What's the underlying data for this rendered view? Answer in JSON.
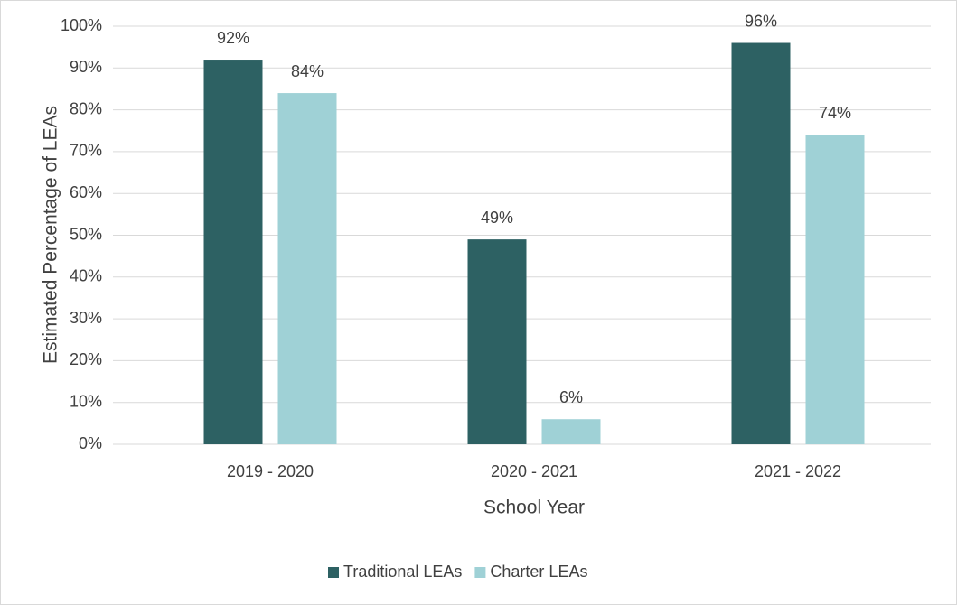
{
  "chart_data": {
    "type": "bar",
    "categories": [
      "2019 - 2020",
      "2020 - 2021",
      "2021 - 2022"
    ],
    "series": [
      {
        "name": "Traditional LEAs",
        "color": "#2d6163",
        "values": [
          92,
          49,
          96
        ],
        "value_labels": [
          "92%",
          "49%",
          "96%"
        ]
      },
      {
        "name": "Charter LEAs",
        "color": "#9fd1d6",
        "values": [
          84,
          6,
          74
        ],
        "value_labels": [
          "84%",
          "6%",
          "74%"
        ]
      }
    ],
    "x_label": "School Year",
    "y_label": "Estimated Percentage of LEAs",
    "ylim": [
      0,
      100
    ],
    "yticks": [
      {
        "value": 0,
        "label": "0%"
      },
      {
        "value": 10,
        "label": "10%"
      },
      {
        "value": 20,
        "label": "20%"
      },
      {
        "value": 30,
        "label": "30%"
      },
      {
        "value": 40,
        "label": "40%"
      },
      {
        "value": 50,
        "label": "50%"
      },
      {
        "value": 60,
        "label": "60%"
      },
      {
        "value": 70,
        "label": "70%"
      },
      {
        "value": 80,
        "label": "80%"
      },
      {
        "value": 90,
        "label": "90%"
      },
      {
        "value": 100,
        "label": "100%"
      }
    ],
    "grid": true,
    "legend": "bottom"
  }
}
